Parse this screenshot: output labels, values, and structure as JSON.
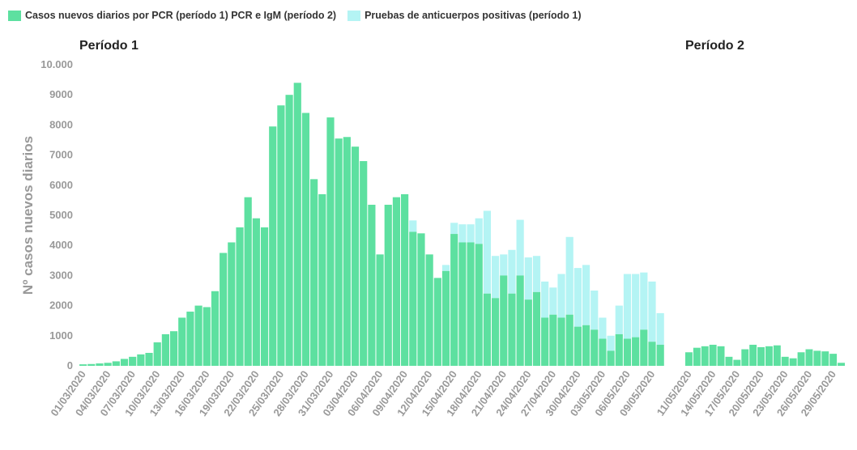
{
  "colors": {
    "pcr": "#5de0a0",
    "antibody": "#b4f4f4"
  },
  "chart_data": {
    "type": "bar",
    "legend": [
      {
        "name": "Casos nuevos diarios por PCR (período 1) PCR e IgM (período 2)",
        "color": "#5de0a0"
      },
      {
        "name": "Pruebas de anticuerpos positivas (período 1)",
        "color": "#b4f4f4"
      }
    ],
    "ylabel": "Nº casos nuevos diarios",
    "ylim": [
      0,
      10000
    ],
    "yticks": [
      {
        "value": 0,
        "label": "0"
      },
      {
        "value": 1000,
        "label": "1000"
      },
      {
        "value": 2000,
        "label": "2000"
      },
      {
        "value": 3000,
        "label": "3000"
      },
      {
        "value": 4000,
        "label": "4000"
      },
      {
        "value": 5000,
        "label": "5000"
      },
      {
        "value": 6000,
        "label": "6000"
      },
      {
        "value": 7000,
        "label": "7000"
      },
      {
        "value": 8000,
        "label": "8000"
      },
      {
        "value": 9000,
        "label": "9000"
      },
      {
        "value": 10000,
        "label": "10.000"
      }
    ],
    "periods": [
      {
        "title": "Período 1",
        "x": [
          "01/03/2020",
          "02/03/2020",
          "03/03/2020",
          "04/03/2020",
          "05/03/2020",
          "06/03/2020",
          "07/03/2020",
          "08/03/2020",
          "09/03/2020",
          "10/03/2020",
          "11/03/2020",
          "12/03/2020",
          "13/03/2020",
          "14/03/2020",
          "15/03/2020",
          "16/03/2020",
          "17/03/2020",
          "18/03/2020",
          "19/03/2020",
          "20/03/2020",
          "21/03/2020",
          "22/03/2020",
          "23/03/2020",
          "24/03/2020",
          "25/03/2020",
          "26/03/2020",
          "27/03/2020",
          "28/03/2020",
          "29/03/2020",
          "30/03/2020",
          "31/03/2020",
          "01/04/2020",
          "02/04/2020",
          "03/04/2020",
          "04/04/2020",
          "05/04/2020",
          "06/04/2020",
          "07/04/2020",
          "08/04/2020",
          "09/04/2020",
          "10/04/2020",
          "11/04/2020",
          "12/04/2020",
          "13/04/2020",
          "14/04/2020",
          "15/04/2020",
          "16/04/2020",
          "17/04/2020",
          "18/04/2020",
          "19/04/2020",
          "20/04/2020",
          "21/04/2020",
          "22/04/2020",
          "23/04/2020",
          "24/04/2020",
          "25/04/2020",
          "26/04/2020",
          "27/04/2020",
          "28/04/2020",
          "29/04/2020",
          "30/04/2020",
          "01/05/2020",
          "02/05/2020",
          "03/05/2020",
          "04/05/2020",
          "05/05/2020",
          "06/05/2020",
          "07/05/2020",
          "08/05/2020",
          "09/05/2020",
          "10/05/2020"
        ],
        "xticks": [
          "01/03/2020",
          "04/03/2020",
          "07/03/2020",
          "10/03/2020",
          "13/03/2020",
          "16/03/2020",
          "19/03/2020",
          "22/03/2020",
          "25/03/2020",
          "28/03/2020",
          "31/03/2020",
          "03/04/2020",
          "06/04/2020",
          "09/04/2020",
          "12/04/2020",
          "15/04/2020",
          "18/04/2020",
          "21/04/2020",
          "24/04/2020",
          "27/04/2020",
          "30/04/2020",
          "03/05/2020",
          "06/05/2020",
          "09/05/2020"
        ],
        "series": [
          {
            "name": "Casos nuevos diarios por PCR (período 1) PCR e IgM (período 2)",
            "values": [
              50,
              60,
              80,
              100,
              150,
              230,
              300,
              380,
              430,
              780,
              1050,
              1150,
              1600,
              1800,
              2000,
              1950,
              2480,
              3750,
              4100,
              4600,
              5600,
              4900,
              4600,
              7950,
              8650,
              9000,
              9400,
              8400,
              6200,
              5700,
              8250,
              7550,
              7600,
              7280,
              6800,
              5350,
              3700,
              5350,
              5600,
              5700,
              4450,
              4400,
              3700,
              2920,
              3150,
              4380,
              4100,
              4100,
              4050,
              2400,
              2250,
              3000,
              2400,
              3000,
              2200,
              2450,
              1600,
              1700,
              1600,
              1700,
              1300,
              1350,
              1200,
              900,
              500,
              1050,
              900,
              950,
              1200,
              800,
              700
            ]
          },
          {
            "name": "Pruebas de anticuerpos positivas (período 1)",
            "values": [
              0,
              0,
              0,
              0,
              0,
              0,
              0,
              0,
              0,
              0,
              0,
              0,
              0,
              0,
              0,
              0,
              0,
              0,
              0,
              0,
              0,
              0,
              0,
              0,
              0,
              0,
              0,
              0,
              0,
              0,
              0,
              0,
              0,
              0,
              0,
              0,
              0,
              0,
              0,
              0,
              380,
              0,
              0,
              0,
              200,
              370,
              600,
              600,
              850,
              2750,
              1400,
              700,
              1450,
              1850,
              1400,
              1200,
              1200,
              900,
              1450,
              2580,
              1950,
              2000,
              1300,
              700,
              500,
              950,
              2150,
              2100,
              1900,
              2000,
              1050
            ]
          }
        ]
      },
      {
        "title": "Período 2",
        "x": [
          "11/05/2020",
          "12/05/2020",
          "13/05/2020",
          "14/05/2020",
          "15/05/2020",
          "16/05/2020",
          "17/05/2020",
          "18/05/2020",
          "19/05/2020",
          "20/05/2020",
          "21/05/2020",
          "22/05/2020",
          "23/05/2020",
          "24/05/2020",
          "25/05/2020",
          "26/05/2020",
          "27/05/2020",
          "28/05/2020",
          "29/05/2020",
          "30/05/2020",
          "31/05/2020"
        ],
        "xticks": [
          "11/05/2020",
          "14/05/2020",
          "17/05/2020",
          "20/05/2020",
          "23/05/2020",
          "26/05/2020",
          "29/05/2020"
        ],
        "series": [
          {
            "name": "Casos nuevos diarios por PCR (período 1) PCR e IgM (período 2)",
            "values": [
              450,
              600,
              650,
              700,
              650,
              300,
              200,
              550,
              700,
              620,
              650,
              680,
              300,
              250,
              450,
              550,
              500,
              480,
              400,
              100,
              0
            ]
          }
        ]
      }
    ]
  }
}
